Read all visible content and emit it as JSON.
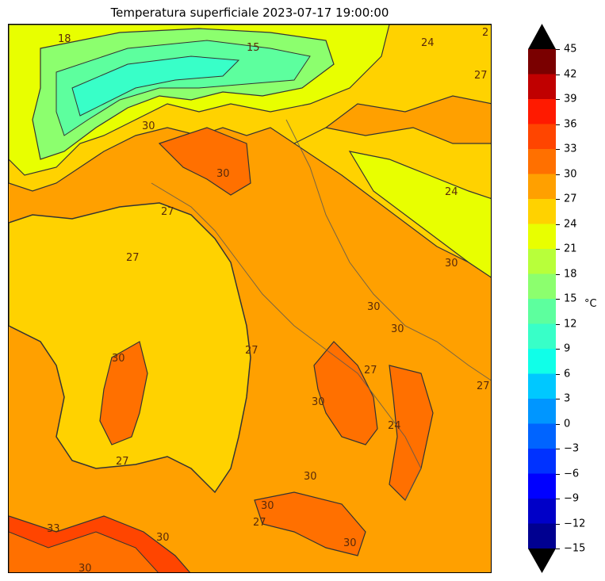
{
  "title": "Temperatura superficiale 2023-07-17 19:00:00",
  "colorbar": {
    "unit": "°C",
    "ticks": [
      "45",
      "42",
      "39",
      "36",
      "33",
      "30",
      "27",
      "24",
      "21",
      "18",
      "15",
      "12",
      "9",
      "6",
      "3",
      "0",
      "−3",
      "−6",
      "−9",
      "−12",
      "−15"
    ],
    "colors": [
      "#7a0000",
      "#c00000",
      "#ff1a00",
      "#ff4500",
      "#ff7000",
      "#ffa000",
      "#ffd200",
      "#e8ff00",
      "#b8ff3a",
      "#8cff6e",
      "#5dff9e",
      "#38ffc8",
      "#10ffe8",
      "#00c8ff",
      "#0096ff",
      "#0064ff",
      "#0032ff",
      "#0000ff",
      "#0000c8",
      "#000090"
    ],
    "over_color": "#000000",
    "under_color": "#000000"
  },
  "map": {
    "region": "Italy",
    "variable": "surface temperature",
    "contour_labels": [
      "18",
      "15",
      "24",
      "2",
      "27",
      "30",
      "30",
      "24",
      "27",
      "30",
      "27",
      "30",
      "27",
      "30",
      "30",
      "27",
      "24",
      "30",
      "27",
      "30",
      "30",
      "27",
      "33",
      "30",
      "30",
      "30",
      "27"
    ]
  }
}
